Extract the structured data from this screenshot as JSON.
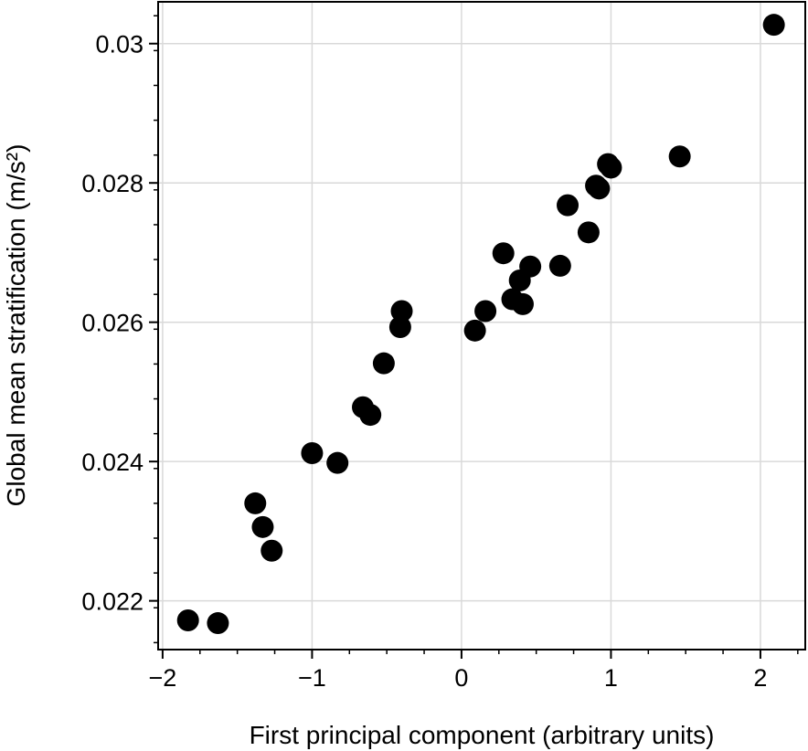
{
  "chart_data": {
    "type": "scatter",
    "xlabel": "First principal component (arbitrary units)",
    "ylabel": "Global mean stratification (m/s²)",
    "xlim": [
      -2.03,
      2.3
    ],
    "ylim": [
      0.0213,
      0.0306
    ],
    "grid": true,
    "marker_color": "#000000",
    "x_ticks": [
      {
        "value": -2,
        "label": "−2"
      },
      {
        "value": -1,
        "label": "−1"
      },
      {
        "value": 0,
        "label": "0"
      },
      {
        "value": 1,
        "label": "1"
      },
      {
        "value": 2,
        "label": "2"
      }
    ],
    "y_ticks": [
      {
        "value": 0.022,
        "label": "0.022"
      },
      {
        "value": 0.024,
        "label": "0.024"
      },
      {
        "value": 0.026,
        "label": "0.026"
      },
      {
        "value": 0.028,
        "label": "0.028"
      },
      {
        "value": 0.03,
        "label": "0.03"
      }
    ],
    "series": [
      {
        "points": [
          {
            "x": -1.83,
            "y": 0.02172
          },
          {
            "x": -1.63,
            "y": 0.02168
          },
          {
            "x": -1.38,
            "y": 0.0234
          },
          {
            "x": -1.33,
            "y": 0.02306
          },
          {
            "x": -1.27,
            "y": 0.02272
          },
          {
            "x": -1.0,
            "y": 0.02412
          },
          {
            "x": -0.83,
            "y": 0.02398
          },
          {
            "x": -0.66,
            "y": 0.02478
          },
          {
            "x": -0.61,
            "y": 0.02467
          },
          {
            "x": -0.52,
            "y": 0.02541
          },
          {
            "x": -0.4,
            "y": 0.02616
          },
          {
            "x": -0.41,
            "y": 0.02593
          },
          {
            "x": 0.09,
            "y": 0.02588
          },
          {
            "x": 0.16,
            "y": 0.02616
          },
          {
            "x": 0.28,
            "y": 0.02699
          },
          {
            "x": 0.34,
            "y": 0.02633
          },
          {
            "x": 0.39,
            "y": 0.0266
          },
          {
            "x": 0.41,
            "y": 0.02626
          },
          {
            "x": 0.46,
            "y": 0.0268
          },
          {
            "x": 0.66,
            "y": 0.02681
          },
          {
            "x": 0.71,
            "y": 0.02768
          },
          {
            "x": 0.85,
            "y": 0.02729
          },
          {
            "x": 0.9,
            "y": 0.02796
          },
          {
            "x": 0.92,
            "y": 0.02792
          },
          {
            "x": 0.98,
            "y": 0.02827
          },
          {
            "x": 1.0,
            "y": 0.02822
          },
          {
            "x": 1.46,
            "y": 0.02838
          },
          {
            "x": 2.09,
            "y": 0.03027
          }
        ]
      }
    ]
  }
}
